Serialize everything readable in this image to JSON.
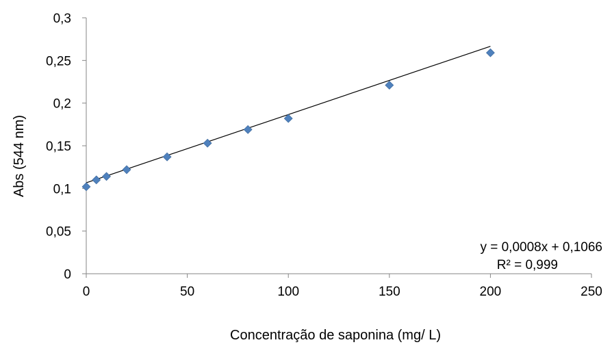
{
  "chart_data": {
    "type": "scatter",
    "title": "",
    "xlabel": "Concentração de saponina (mg/ L)",
    "ylabel": "Abs (544 nm)",
    "xlim": [
      0,
      250
    ],
    "ylim": [
      0,
      0.3
    ],
    "x_ticks": [
      "0",
      "50",
      "100",
      "150",
      "200",
      "250"
    ],
    "y_ticks": [
      "0",
      "0,05",
      "0,1",
      "0,15",
      "0,2",
      "0,25",
      "0,3"
    ],
    "grid": false,
    "marker_color": "#4f81bd",
    "line_color": "#000000",
    "x": [
      0,
      5,
      10,
      20,
      40,
      60,
      80,
      100,
      150,
      200
    ],
    "y": [
      0.102,
      0.11,
      0.114,
      0.122,
      0.137,
      0.153,
      0.169,
      0.182,
      0.221,
      0.259
    ],
    "trendline": {
      "slope": 0.0008,
      "intercept": 0.1066,
      "equation": "y = 0,0008x + 0,1066",
      "r_squared": "R² = 0,999"
    }
  }
}
